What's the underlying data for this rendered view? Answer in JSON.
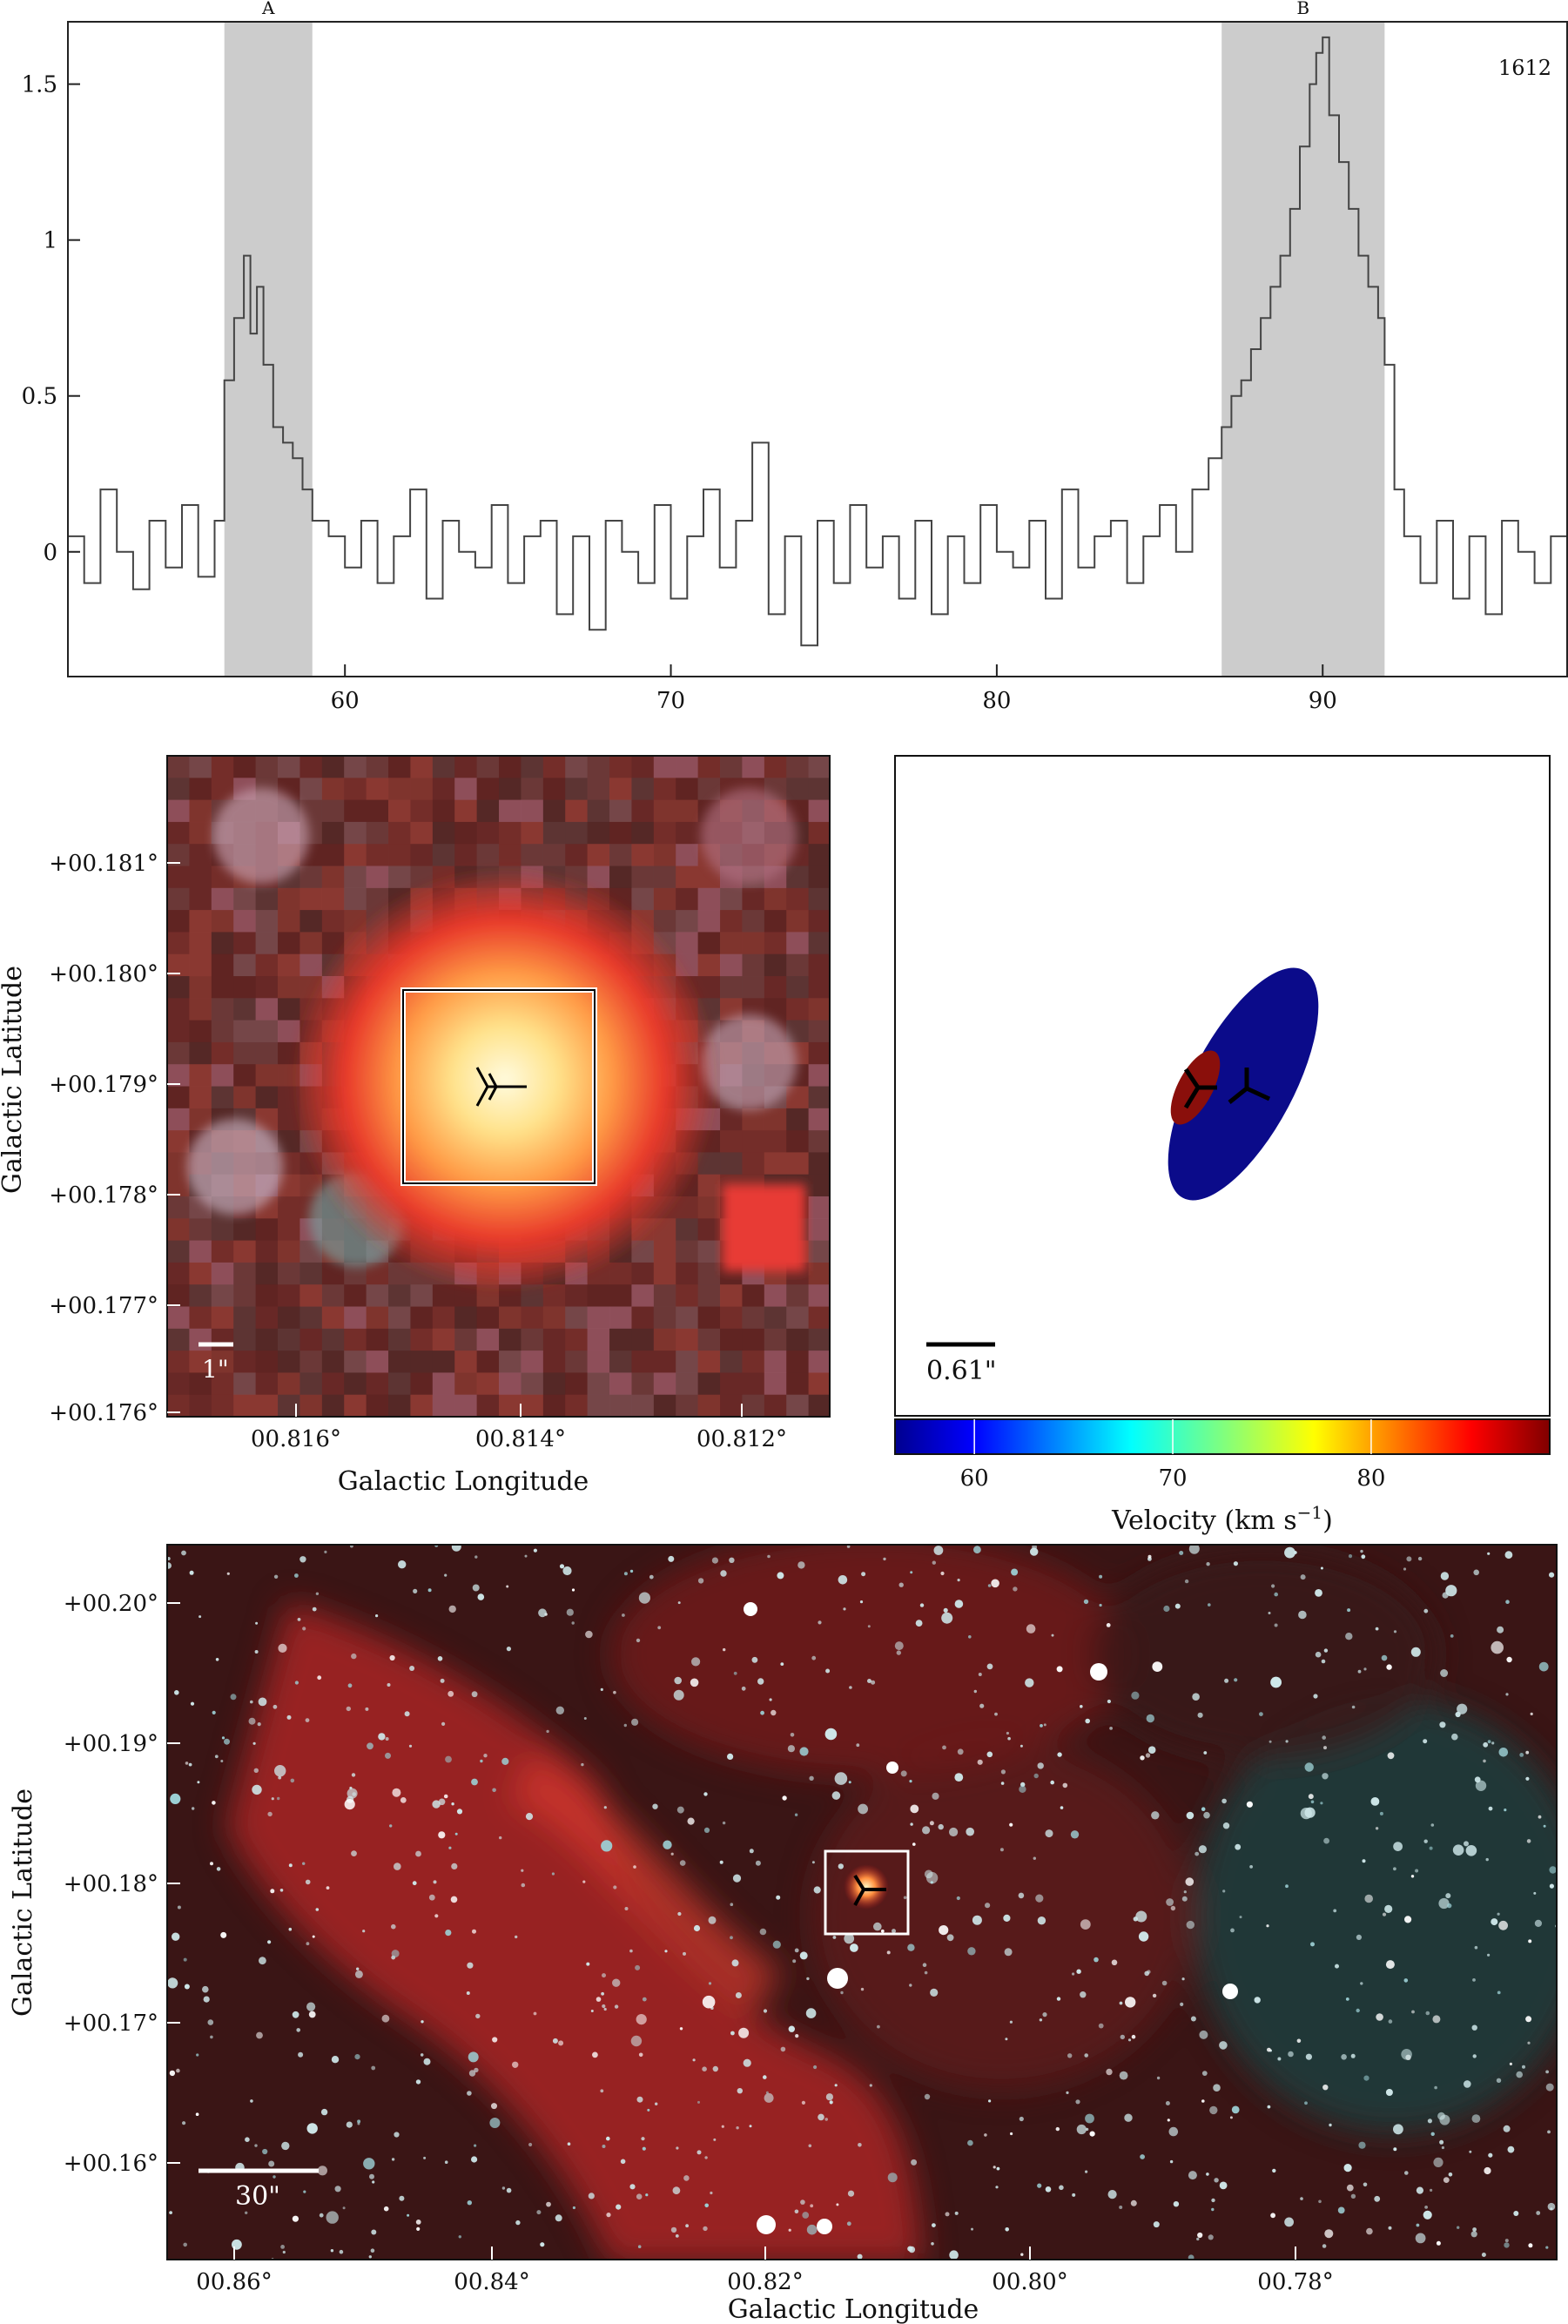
{
  "chart_data": [
    {
      "type": "line",
      "panel": "spectrum",
      "annotation": "1612",
      "xlim": [
        51.5,
        97.5
      ],
      "ylim": [
        -0.4,
        1.7
      ],
      "xticks": [
        60,
        70,
        80,
        90
      ],
      "yticks": [
        0,
        0.5,
        1,
        1.5
      ],
      "ytick_labels": [
        "0",
        "0.5",
        "1",
        "1.5"
      ],
      "highlight_regions": [
        {
          "label": "A",
          "x0": 56.3,
          "x1": 59.0
        },
        {
          "label": "B",
          "x0": 86.9,
          "x1": 91.9
        }
      ],
      "line_color": "#444444",
      "shade_color": "#cccccc",
      "series": [
        {
          "x": [
            51.5,
            52,
            52.5,
            53,
            53.5,
            54,
            54.5,
            55,
            55.5,
            56,
            56.3,
            56.6,
            56.9,
            57.1,
            57.3,
            57.5,
            57.8,
            58.1,
            58.4,
            58.7,
            59,
            59.5,
            60,
            60.5,
            61,
            61.5,
            62,
            62.5,
            63,
            63.5,
            64,
            64.5,
            65,
            65.5,
            66,
            66.5,
            67,
            67.5,
            68,
            68.5,
            69,
            69.5,
            70,
            70.5,
            71,
            71.5,
            72,
            72.5,
            73,
            73.5,
            74,
            74.5,
            75,
            75.5,
            76,
            76.5,
            77,
            77.5,
            78,
            78.5,
            79,
            79.5,
            80,
            80.5,
            81,
            81.5,
            82,
            82.5,
            83,
            83.5,
            84,
            84.5,
            85,
            85.5,
            86,
            86.5,
            86.9,
            87.2,
            87.5,
            87.8,
            88.1,
            88.4,
            88.7,
            89,
            89.3,
            89.6,
            89.8,
            90,
            90.2,
            90.5,
            90.8,
            91.1,
            91.4,
            91.7,
            91.9,
            92.2,
            92.5,
            93,
            93.5,
            94,
            94.5,
            95,
            95.5,
            96,
            96.5,
            97,
            97.5
          ],
          "y": [
            0.05,
            -0.1,
            0.2,
            0.0,
            -0.12,
            0.1,
            -0.05,
            0.15,
            -0.08,
            0.1,
            0.55,
            0.75,
            0.95,
            0.7,
            0.85,
            0.6,
            0.4,
            0.35,
            0.3,
            0.2,
            0.1,
            0.05,
            -0.05,
            0.1,
            -0.1,
            0.05,
            0.2,
            -0.15,
            0.1,
            0.0,
            -0.05,
            0.15,
            -0.1,
            0.05,
            0.1,
            -0.2,
            0.05,
            -0.25,
            0.1,
            0.0,
            -0.1,
            0.15,
            -0.15,
            0.05,
            0.2,
            -0.05,
            0.1,
            0.35,
            -0.2,
            0.05,
            -0.3,
            0.1,
            -0.1,
            0.15,
            -0.05,
            0.05,
            -0.15,
            0.1,
            -0.2,
            0.05,
            -0.1,
            0.15,
            0.0,
            -0.05,
            0.1,
            -0.15,
            0.2,
            -0.05,
            0.05,
            0.1,
            -0.1,
            0.05,
            0.15,
            0.0,
            0.2,
            0.3,
            0.4,
            0.5,
            0.55,
            0.65,
            0.75,
            0.85,
            0.95,
            1.1,
            1.3,
            1.5,
            1.6,
            1.65,
            1.4,
            1.25,
            1.1,
            0.95,
            0.85,
            0.75,
            0.6,
            0.2,
            0.05,
            -0.1,
            0.1,
            -0.15,
            0.05,
            -0.2,
            0.1,
            0.0,
            -0.1,
            0.05,
            -0.05
          ]
        }
      ]
    },
    {
      "type": "heatmap",
      "panel": "zoom-image",
      "xlabel": "Galactic Longitude",
      "ylabel": "Galactic Latitude",
      "xtick_labels": [
        "00.816°",
        "00.814°",
        "00.812°"
      ],
      "ytick_labels": [
        "+00.181°",
        "+00.180°",
        "+00.179°",
        "+00.178°",
        "+00.177°",
        "+00.176°"
      ],
      "scalebar": "1\""
    },
    {
      "type": "scatter",
      "panel": "maser-ellipses",
      "scalebar": "0.61\"",
      "colorbar_label": "Velocity (km s",
      "colorbar_label_sup": "−1",
      "colorbar_label_end": ")",
      "colorbar_ticks": [
        60,
        70,
        80
      ],
      "colorbar_range": [
        56,
        89
      ],
      "points": [
        {
          "label": "A",
          "velocity": 57.6,
          "color": "#0b0b8a"
        },
        {
          "label": "B",
          "velocity": 89.4,
          "color": "#8a0f0b"
        }
      ]
    },
    {
      "type": "heatmap",
      "panel": "wide-field-image",
      "xlabel": "Galactic Longitude",
      "ylabel": "Galactic Latitude",
      "xtick_labels": [
        "00.86°",
        "00.84°",
        "00.82°",
        "00.80°",
        "00.78°"
      ],
      "ytick_labels": [
        "+00.20°",
        "+00.19°",
        "+00.18°",
        "+00.17°",
        "+00.16°"
      ],
      "scalebar": "30\""
    }
  ]
}
